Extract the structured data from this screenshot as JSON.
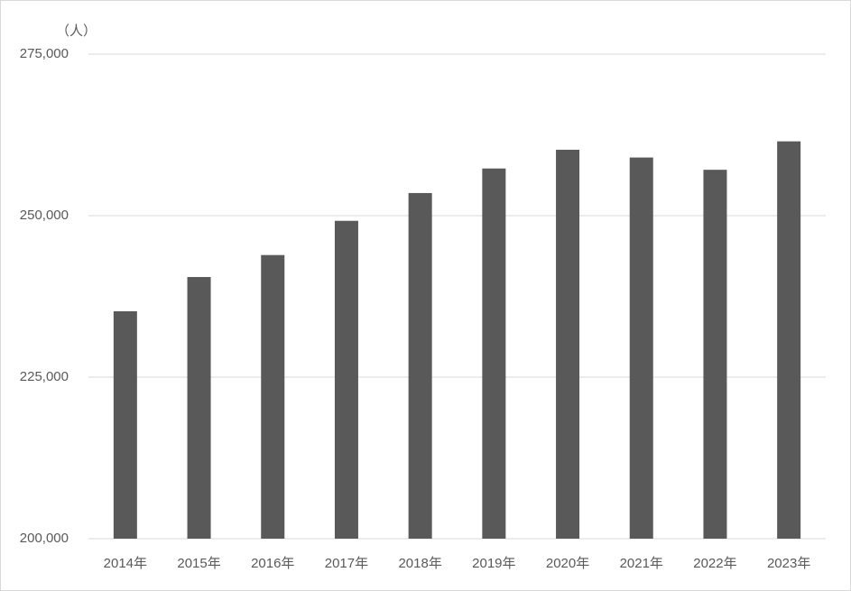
{
  "chart_data": {
    "type": "bar",
    "y_label": "（人）",
    "categories": [
      "2014年",
      "2015年",
      "2016年",
      "2017年",
      "2018年",
      "2019年",
      "2020年",
      "2021年",
      "2022年",
      "2023年"
    ],
    "values": [
      235200,
      240500,
      243900,
      249200,
      253500,
      257300,
      260200,
      259000,
      257100,
      261500
    ],
    "color": "#595959",
    "ylim": [
      200000,
      275000
    ],
    "yticks": [
      {
        "value": 200000,
        "label": "200,000"
      },
      {
        "value": 225000,
        "label": "225,000"
      },
      {
        "value": 250000,
        "label": "250,000"
      },
      {
        "value": 275000,
        "label": "275,000"
      }
    ],
    "grid": true
  }
}
